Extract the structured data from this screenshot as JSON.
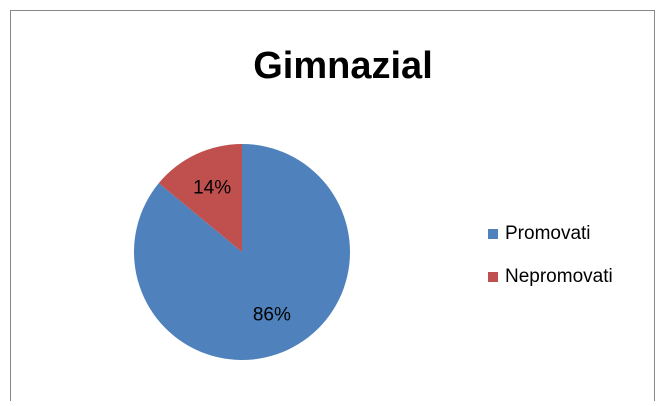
{
  "chart_data": {
    "type": "pie",
    "title": "Gimnazial",
    "categories": [
      "Promovati",
      "Nepromovati"
    ],
    "values": [
      86,
      14
    ],
    "value_labels": [
      "86%",
      "14%"
    ],
    "colors": [
      "#4f81bd",
      "#c0504d"
    ],
    "legend": "right"
  }
}
